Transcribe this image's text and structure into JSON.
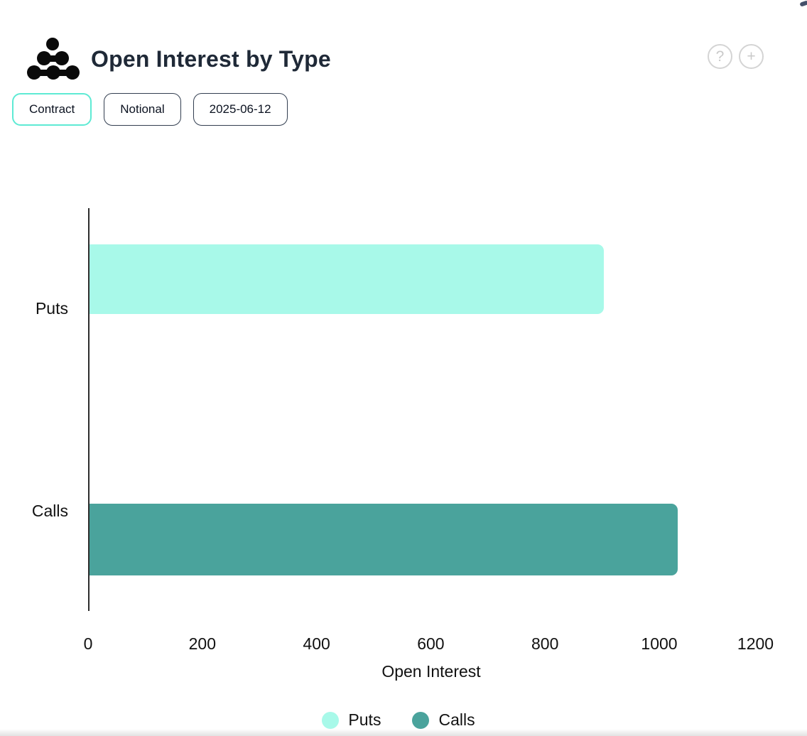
{
  "header": {
    "title": "Open Interest by Type",
    "icons": {
      "help": "?",
      "add": "+"
    }
  },
  "toolbar": {
    "contract_label": "Contract",
    "notional_label": "Notional",
    "date_label": "2025-06-12"
  },
  "chart_data": {
    "type": "bar",
    "orientation": "horizontal",
    "title": "Open Interest by Type",
    "xlabel": "Open Interest",
    "ylabel": "",
    "categories": [
      "Puts",
      "Calls"
    ],
    "series": [
      {
        "name": "Puts",
        "value": 900,
        "color": "#a8f9e9"
      },
      {
        "name": "Calls",
        "value": 1030,
        "color": "#4aa39c"
      }
    ],
    "xlim": [
      0,
      1200
    ],
    "x_ticks": [
      0,
      200,
      400,
      600,
      800,
      1000,
      1200
    ],
    "grid": false,
    "legend": {
      "position": "bottom",
      "items": [
        "Puts",
        "Calls"
      ]
    },
    "accent_color": "#5eead4",
    "axis_color": "#2d2d2d"
  }
}
